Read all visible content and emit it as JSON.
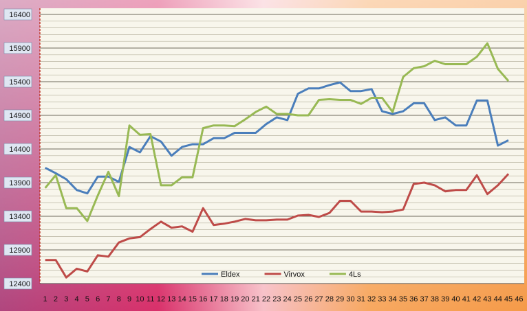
{
  "chart_data": {
    "type": "line",
    "categories": [
      "1",
      "2",
      "3",
      "4",
      "5",
      "6",
      "7",
      "8",
      "9",
      "10",
      "11",
      "12",
      "13",
      "14",
      "15",
      "16",
      "17",
      "18",
      "19",
      "20",
      "21",
      "22",
      "23",
      "24",
      "25",
      "26",
      "27",
      "28",
      "29",
      "30",
      "31",
      "32",
      "33",
      "34",
      "35",
      "36",
      "37",
      "38",
      "39",
      "40",
      "41",
      "42",
      "43",
      "44",
      "45",
      "46"
    ],
    "series": [
      {
        "name": "Eldex",
        "color": "#4a7ebb",
        "values": [
          14120,
          14040,
          13950,
          13790,
          13740,
          13990,
          13990,
          13910,
          14430,
          14350,
          14590,
          14510,
          14300,
          14430,
          14470,
          14470,
          14560,
          14560,
          14640,
          14640,
          14640,
          14770,
          14870,
          14830,
          15220,
          15300,
          15300,
          15350,
          15390,
          15260,
          15260,
          15290,
          14960,
          14920,
          14960,
          15080,
          15080,
          14830,
          14870,
          14750,
          14750,
          15120,
          15120,
          14450,
          14530,
          null
        ]
      },
      {
        "name": "Virvox",
        "color": "#be4b48",
        "values": [
          12750,
          12750,
          12490,
          12620,
          12580,
          12820,
          12800,
          13010,
          13070,
          13090,
          13210,
          13320,
          13230,
          13250,
          13170,
          13520,
          13270,
          13290,
          13320,
          13360,
          13340,
          13340,
          13350,
          13350,
          13410,
          13420,
          13390,
          13450,
          13630,
          13630,
          13470,
          13470,
          13460,
          13470,
          13500,
          13880,
          13900,
          13860,
          13770,
          13790,
          13790,
          14010,
          13730,
          13860,
          14030,
          null
        ]
      },
      {
        "name": "4Ls",
        "color": "#98b954",
        "values": [
          13820,
          14010,
          13520,
          13520,
          13330,
          13710,
          14060,
          13700,
          14750,
          14610,
          14620,
          13860,
          13860,
          13980,
          13980,
          14710,
          14750,
          14750,
          14740,
          14840,
          14950,
          15030,
          14920,
          14920,
          14900,
          14900,
          15130,
          15140,
          15130,
          15130,
          15070,
          15160,
          15160,
          14950,
          15470,
          15600,
          15630,
          15710,
          15660,
          15660,
          15660,
          15770,
          15970,
          15590,
          15410,
          null
        ]
      }
    ],
    "ylim": [
      12400,
      16400
    ],
    "yticks": [
      12400,
      12900,
      13400,
      13900,
      14400,
      14900,
      15400,
      15900,
      16400
    ],
    "grid": true,
    "legend": "bottom"
  }
}
